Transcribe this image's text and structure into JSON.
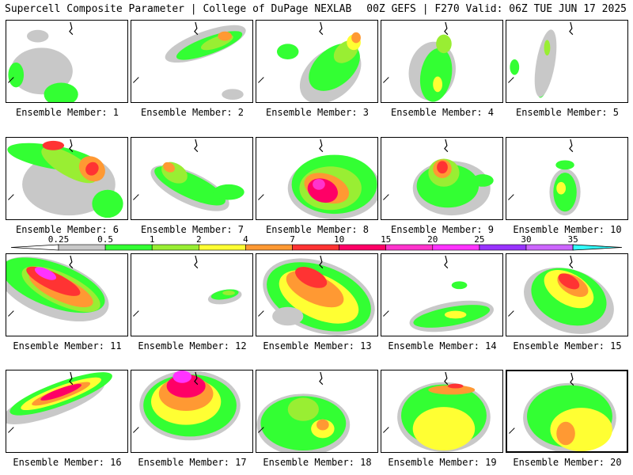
{
  "header": {
    "left": "Supercell Composite Parameter | College of DuPage NEXLAB",
    "right": "00Z GEFS | F270 Valid: 06Z TUE JUN 17 2025"
  },
  "colorbar": {
    "ticks": [
      "0.25",
      "0.5",
      "1",
      "2",
      "4",
      "7",
      "10",
      "15",
      "20",
      "25",
      "30",
      "35"
    ],
    "colors": [
      "#c8c8c8",
      "#33ff33",
      "#99ee33",
      "#ffff33",
      "#ff9933",
      "#ff3333",
      "#ff0066",
      "#ff33cc",
      "#ff33ff",
      "#9933ff",
      "#cc66ff",
      "#33ffff"
    ]
  },
  "panels": [
    {
      "label": "Ensemble Member: 1"
    },
    {
      "label": "Ensemble Member: 2"
    },
    {
      "label": "Ensemble Member: 3"
    },
    {
      "label": "Ensemble Member: 4"
    },
    {
      "label": "Ensemble Member: 5"
    },
    {
      "label": "Ensemble Member: 6"
    },
    {
      "label": "Ensemble Member: 7"
    },
    {
      "label": "Ensemble Member: 8"
    },
    {
      "label": "Ensemble Member: 9"
    },
    {
      "label": "Ensemble Member: 10"
    },
    {
      "label": "Ensemble Member: 11"
    },
    {
      "label": "Ensemble Member: 12"
    },
    {
      "label": "Ensemble Member: 13"
    },
    {
      "label": "Ensemble Member: 14"
    },
    {
      "label": "Ensemble Member: 15"
    },
    {
      "label": "Ensemble Member: 16"
    },
    {
      "label": "Ensemble Member: 17"
    },
    {
      "label": "Ensemble Member: 18"
    },
    {
      "label": "Ensemble Member: 19"
    },
    {
      "label": "Ensemble Member: 20"
    }
  ]
}
